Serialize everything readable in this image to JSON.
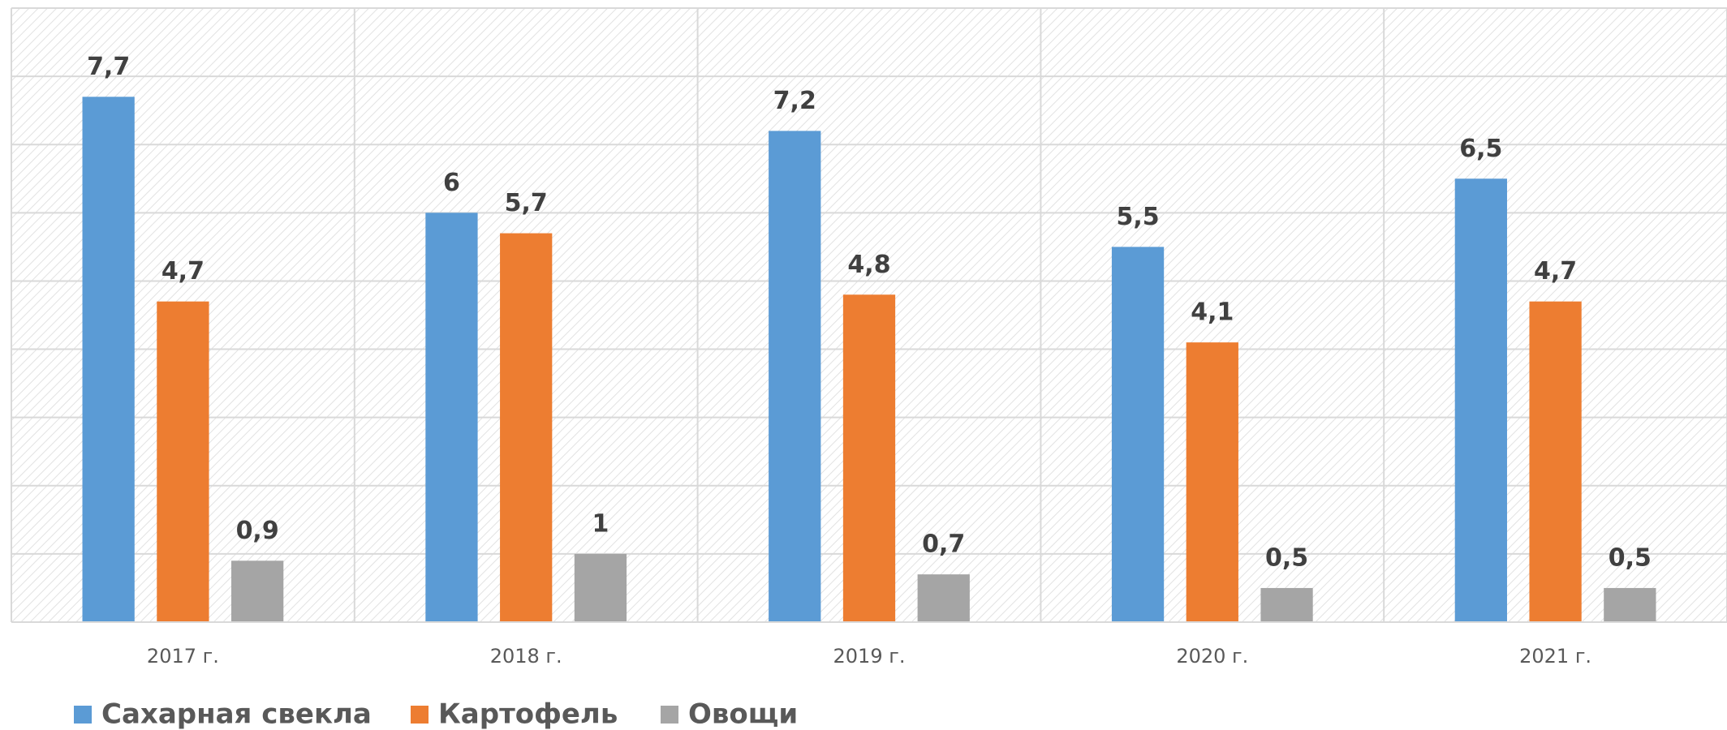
{
  "chart_data": {
    "type": "bar",
    "categories": [
      "2017 г.",
      "2018 г.",
      "2019 г.",
      "2020 г.",
      "2021 г."
    ],
    "series": [
      {
        "name": "Сахарная свекла",
        "color": "#5b9bd5",
        "values": [
          7.7,
          6,
          7.2,
          5.5,
          6.5
        ],
        "value_labels": [
          "7,7",
          "6",
          "7,2",
          "5,5",
          "6,5"
        ]
      },
      {
        "name": "Картофель",
        "color": "#ed7d31",
        "values": [
          4.7,
          5.7,
          4.8,
          4.1,
          4.7
        ],
        "value_labels": [
          "4,7",
          "5,7",
          "4,8",
          "4,1",
          "4,7"
        ]
      },
      {
        "name": "Овощи",
        "color": "#a5a5a5",
        "values": [
          0.9,
          1,
          0.7,
          0.5,
          0.5
        ],
        "value_labels": [
          "0,9",
          "1",
          "0,7",
          "0,5",
          "0,5"
        ]
      }
    ],
    "ylim": [
      0,
      9
    ],
    "yticks": [
      0,
      1,
      2,
      3,
      4,
      5,
      6,
      7,
      8,
      9
    ],
    "grid": true,
    "legend": "bottom"
  }
}
